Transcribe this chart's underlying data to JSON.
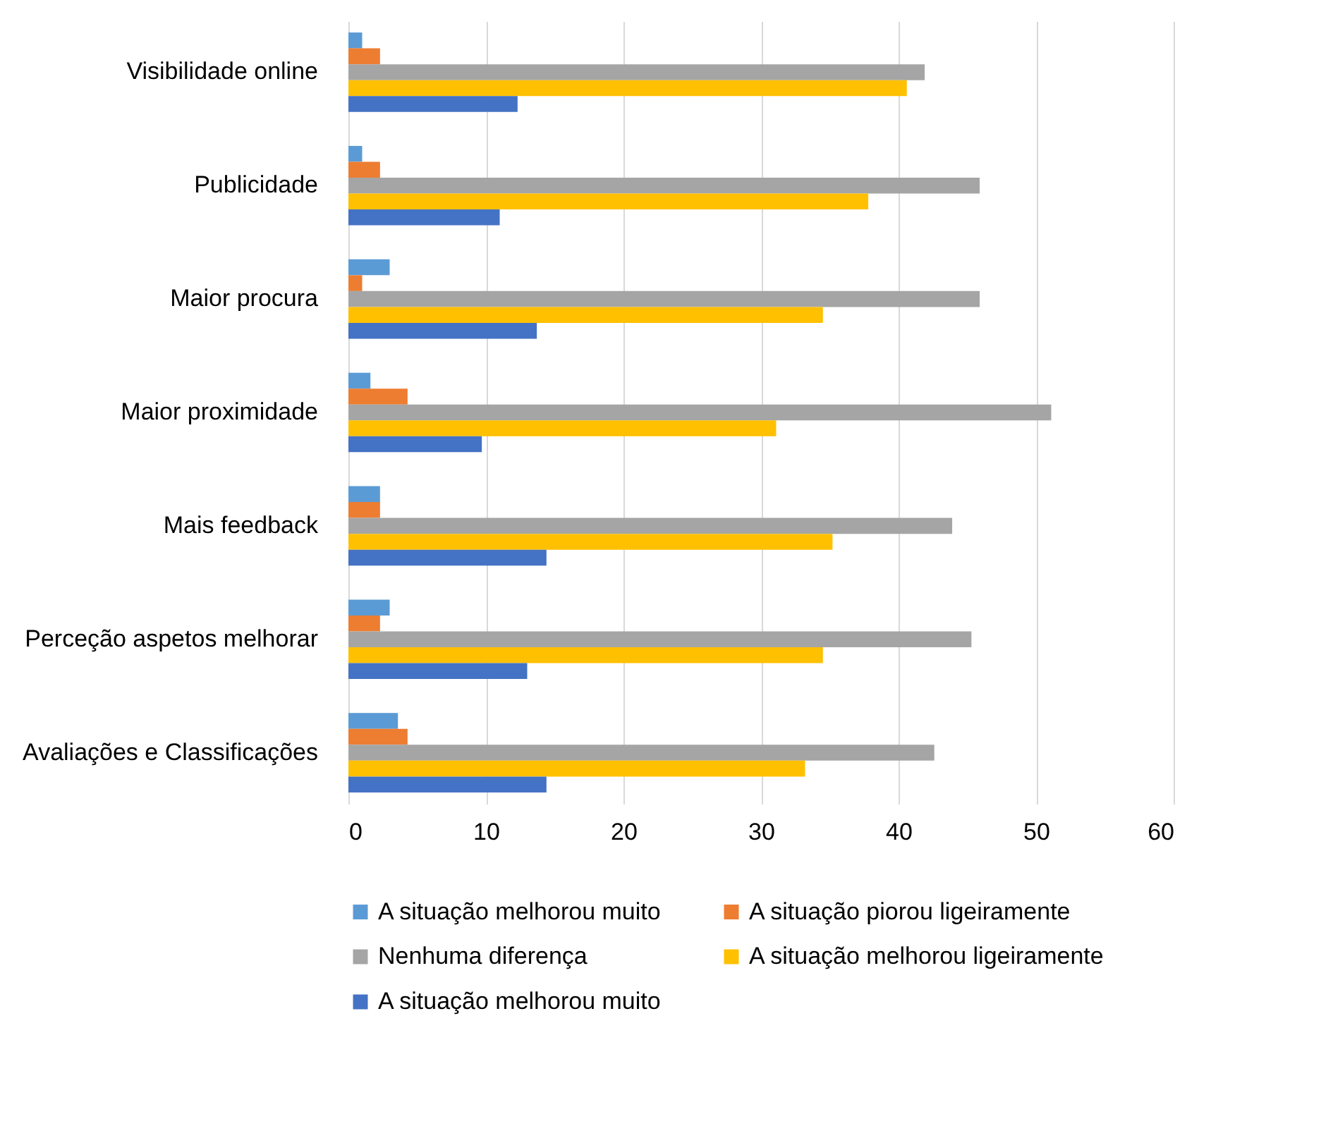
{
  "chart_data": {
    "type": "bar",
    "orientation": "horizontal",
    "categories": [
      "Visibilidade online",
      "Publicidade",
      "Maior procura",
      "Maior proximidade",
      "Mais feedback",
      "Perceção aspetos melhorar",
      "Avaliações e Classificações"
    ],
    "series": [
      {
        "name": "A situação melhorou muito",
        "color": "#5b9bd5",
        "values": [
          1.0,
          1.0,
          3.0,
          1.6,
          2.3,
          3.0,
          3.6
        ]
      },
      {
        "name": "A situação piorou ligeiramente",
        "color": "#ed7d31",
        "values": [
          2.3,
          2.3,
          1.0,
          4.3,
          2.3,
          2.3,
          4.3
        ]
      },
      {
        "name": "Nenhuma diferença",
        "color": "#a5a5a5",
        "values": [
          41.9,
          45.9,
          45.9,
          51.1,
          43.9,
          45.3,
          42.6
        ]
      },
      {
        "name": "A situação melhorou ligeiramente",
        "color": "#ffc000",
        "values": [
          40.6,
          37.8,
          34.5,
          31.1,
          35.2,
          34.5,
          33.2
        ]
      },
      {
        "name": "A situação melhorou muito",
        "color": "#4472c4",
        "values": [
          12.3,
          11.0,
          13.7,
          9.7,
          14.4,
          13.0,
          14.4
        ]
      }
    ],
    "xlim": [
      0,
      60
    ],
    "xticks": [
      0,
      10,
      20,
      30,
      40,
      50,
      60
    ],
    "grid": "x",
    "legend": "bottom"
  }
}
